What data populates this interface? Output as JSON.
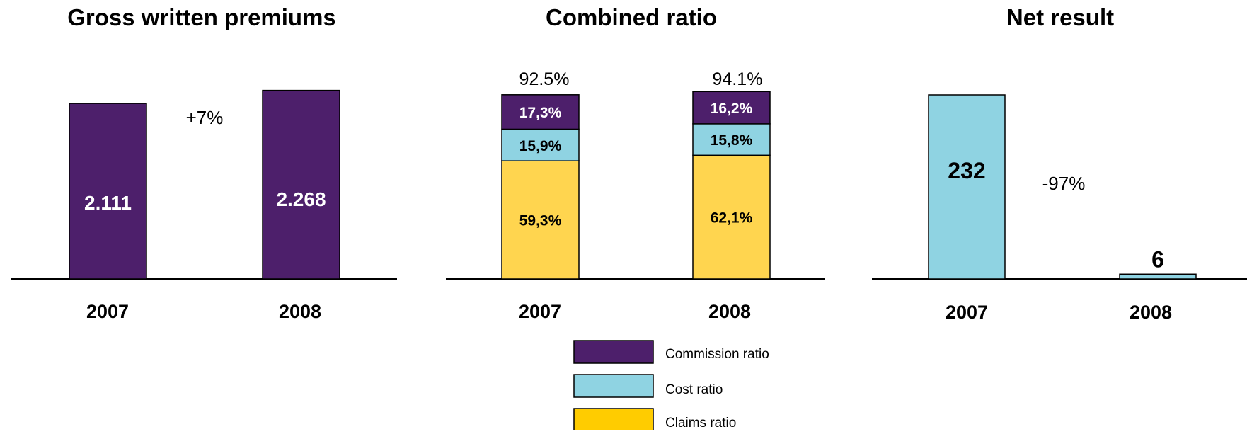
{
  "colors": {
    "purple": "#4d1f6b",
    "cyan": "#8fd3e2",
    "yellow": "#ffd54f",
    "legend_yellow": "#ffcc00"
  },
  "chart_data": [
    {
      "type": "bar",
      "title": "Gross written premiums",
      "categories": [
        "2007",
        "2008"
      ],
      "values": [
        2111,
        2268
      ],
      "value_labels": [
        "2.111",
        "2.268"
      ],
      "annotation": "+7%"
    },
    {
      "type": "bar",
      "stacked": true,
      "title": "Combined ratio",
      "categories": [
        "2007",
        "2008"
      ],
      "series": [
        {
          "name": "Claims ratio",
          "values": [
            59.3,
            62.1
          ],
          "labels": [
            "59,3%",
            "62,1%"
          ]
        },
        {
          "name": "Cost ratio",
          "values": [
            15.9,
            15.8
          ],
          "labels": [
            "15,9%",
            "15,8%"
          ]
        },
        {
          "name": "Commission ratio",
          "values": [
            17.3,
            16.2
          ],
          "labels": [
            "17,3%",
            "16,2%"
          ]
        }
      ],
      "totals": [
        "92.5%",
        "94.1%"
      ],
      "legend_order": [
        "Commission ratio",
        "Cost ratio",
        "Claims ratio"
      ]
    },
    {
      "type": "bar",
      "title": "Net result",
      "categories": [
        "2007",
        "2008"
      ],
      "values": [
        232,
        6
      ],
      "value_labels": [
        "232",
        "6"
      ],
      "annotation": "-97%"
    }
  ]
}
